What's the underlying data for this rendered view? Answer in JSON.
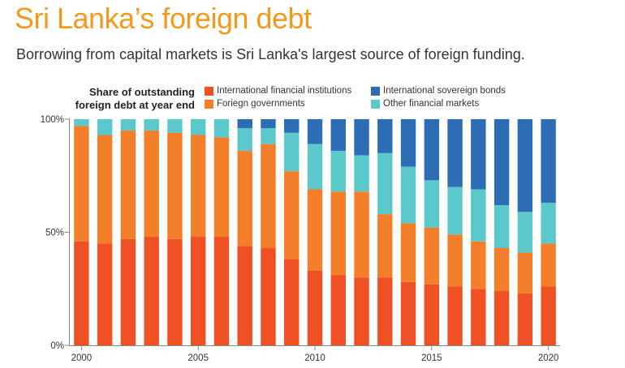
{
  "title": "Sri Lanka’s foreign debt",
  "subtitle": "Borrowing from  capital markets is Sri Lanka's largest source of foreign funding.",
  "legend": {
    "title_line1": "Share of outstanding",
    "title_line2": "foreign debt at year end",
    "items": [
      {
        "label": "International financial institutions",
        "color": "#ef5024"
      },
      {
        "label": "Foriegn governments",
        "color": "#f47f2a"
      },
      {
        "label": "International sovereign bonds",
        "color": "#2d6db5"
      },
      {
        "label": "Other financial markets",
        "color": "#5bc9cc"
      }
    ]
  },
  "chart_data": {
    "type": "bar",
    "stacked": true,
    "categories": [
      "2000",
      "2001",
      "2002",
      "2003",
      "2004",
      "2005",
      "2006",
      "2007",
      "2008",
      "2009",
      "2010",
      "2011",
      "2012",
      "2013",
      "2014",
      "2015",
      "2016",
      "2017",
      "2018",
      "2019",
      "2020"
    ],
    "series": [
      {
        "name": "International financial institutions",
        "color": "#ef5024",
        "values": [
          46,
          45,
          47,
          48,
          47,
          48,
          48,
          44,
          43,
          38,
          33,
          31,
          30,
          30,
          28,
          27,
          26,
          25,
          24,
          23,
          26
        ]
      },
      {
        "name": "Foriegn governments",
        "color": "#f47f2a",
        "values": [
          51,
          48,
          48,
          47,
          47,
          45,
          44,
          42,
          46,
          39,
          36,
          37,
          38,
          28,
          26,
          25,
          23,
          21,
          19,
          18,
          19
        ]
      },
      {
        "name": "Other financial markets",
        "color": "#5bc9cc",
        "values": [
          3,
          7,
          5,
          5,
          6,
          7,
          8,
          10,
          7,
          17,
          20,
          18,
          16,
          27,
          25,
          21,
          21,
          23,
          19,
          18,
          18
        ]
      },
      {
        "name": "International sovereign bonds",
        "color": "#2d6db5",
        "values": [
          0,
          0,
          0,
          0,
          0,
          0,
          0,
          4,
          4,
          6,
          11,
          14,
          16,
          15,
          21,
          27,
          30,
          31,
          38,
          41,
          37
        ]
      }
    ],
    "x_tick_labels": [
      "2000",
      "2005",
      "2010",
      "2015",
      "2020"
    ],
    "y_tick_labels": [
      "0%",
      "50%",
      "100%"
    ],
    "ylim": [
      0,
      100
    ],
    "grid": false,
    "legend_position": "top"
  }
}
